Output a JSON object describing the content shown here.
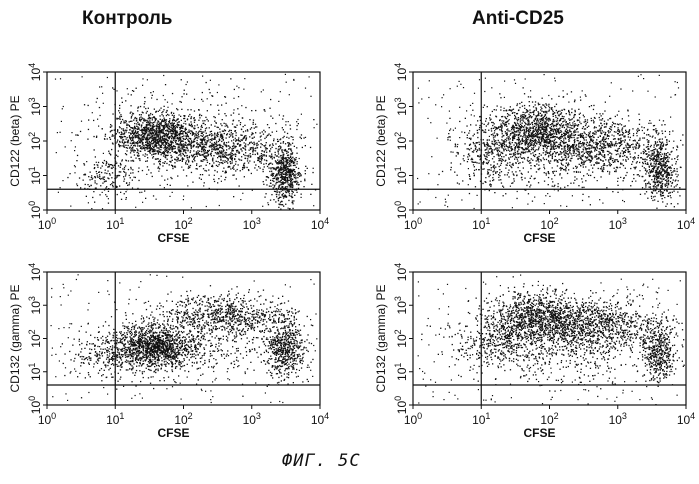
{
  "column_titles": [
    "Контроль",
    "Anti-CD25"
  ],
  "caption": "ФИГ. 5С",
  "chart_data": [
    {
      "type": "scatter",
      "name": "control-cd122",
      "column": "Контроль",
      "xlabel": "CFSE",
      "ylabel": "CD122 (beta) PE",
      "xscale": "log",
      "yscale": "log",
      "xlim": [
        1,
        10000
      ],
      "ylim": [
        1,
        10000
      ],
      "x_ticks": [
        1,
        10,
        100,
        1000,
        10000
      ],
      "y_ticks": [
        1,
        10,
        100,
        1000,
        10000
      ],
      "gate": {
        "x": 10,
        "y": 4
      },
      "clusters": [
        {
          "x": 40,
          "y": 150,
          "sx": 0.32,
          "sy": 0.33,
          "w": 0.4
        },
        {
          "x": 350,
          "y": 60,
          "sx": 0.45,
          "sy": 0.35,
          "w": 0.26
        },
        {
          "x": 3000,
          "y": 12,
          "sx": 0.12,
          "sy": 0.45,
          "w": 0.2
        },
        {
          "x": 8,
          "y": 10,
          "sx": 0.25,
          "sy": 0.3,
          "w": 0.06
        },
        {
          "x": 100,
          "y": 300,
          "sx": 0.8,
          "sy": 0.6,
          "w": 0.08
        }
      ]
    },
    {
      "type": "scatter",
      "name": "anti-cd25-cd122",
      "column": "Anti-CD25",
      "xlabel": "CFSE",
      "ylabel": "CD122 (beta) PE",
      "xscale": "log",
      "yscale": "log",
      "xlim": [
        1,
        10000
      ],
      "ylim": [
        1,
        10000
      ],
      "x_ticks": [
        1,
        10,
        100,
        1000,
        10000
      ],
      "y_ticks": [
        1,
        10,
        100,
        1000,
        10000
      ],
      "gate": {
        "x": 10,
        "y": 4
      },
      "clusters": [
        {
          "x": 60,
          "y": 200,
          "sx": 0.38,
          "sy": 0.4,
          "w": 0.38
        },
        {
          "x": 500,
          "y": 80,
          "sx": 0.45,
          "sy": 0.4,
          "w": 0.28
        },
        {
          "x": 4000,
          "y": 15,
          "sx": 0.12,
          "sy": 0.45,
          "w": 0.16
        },
        {
          "x": 15,
          "y": 40,
          "sx": 0.3,
          "sy": 0.4,
          "w": 0.1
        },
        {
          "x": 120,
          "y": 20,
          "sx": 0.7,
          "sy": 0.5,
          "w": 0.08
        }
      ]
    },
    {
      "type": "scatter",
      "name": "control-cd132",
      "column": "Контроль",
      "xlabel": "CFSE",
      "ylabel": "CD132 (gamma) PE",
      "xscale": "log",
      "yscale": "log",
      "xlim": [
        1,
        10000
      ],
      "ylim": [
        1,
        10000
      ],
      "x_ticks": [
        1,
        10,
        100,
        1000,
        10000
      ],
      "y_ticks": [
        1,
        10,
        100,
        1000,
        10000
      ],
      "gate": {
        "x": 10,
        "y": 4
      },
      "clusters": [
        {
          "x": 35,
          "y": 60,
          "sx": 0.3,
          "sy": 0.32,
          "w": 0.38
        },
        {
          "x": 400,
          "y": 500,
          "sx": 0.45,
          "sy": 0.32,
          "w": 0.24
        },
        {
          "x": 3000,
          "y": 50,
          "sx": 0.15,
          "sy": 0.45,
          "w": 0.18
        },
        {
          "x": 8,
          "y": 30,
          "sx": 0.3,
          "sy": 0.35,
          "w": 0.08
        },
        {
          "x": 150,
          "y": 60,
          "sx": 0.6,
          "sy": 0.45,
          "w": 0.12
        }
      ]
    },
    {
      "type": "scatter",
      "name": "anti-cd25-cd132",
      "column": "Anti-CD25",
      "xlabel": "CFSE",
      "ylabel": "CD132 (gamma) PE",
      "xscale": "log",
      "yscale": "log",
      "xlim": [
        1,
        10000
      ],
      "ylim": [
        1,
        10000
      ],
      "x_ticks": [
        1,
        10,
        100,
        1000,
        10000
      ],
      "y_ticks": [
        1,
        10,
        100,
        1000,
        10000
      ],
      "gate": {
        "x": 10,
        "y": 4
      },
      "clusters": [
        {
          "x": 60,
          "y": 400,
          "sx": 0.35,
          "sy": 0.4,
          "w": 0.34
        },
        {
          "x": 500,
          "y": 250,
          "sx": 0.45,
          "sy": 0.38,
          "w": 0.3
        },
        {
          "x": 4000,
          "y": 40,
          "sx": 0.12,
          "sy": 0.45,
          "w": 0.14
        },
        {
          "x": 15,
          "y": 80,
          "sx": 0.35,
          "sy": 0.4,
          "w": 0.12
        },
        {
          "x": 150,
          "y": 30,
          "sx": 0.6,
          "sy": 0.45,
          "w": 0.1
        }
      ]
    }
  ]
}
